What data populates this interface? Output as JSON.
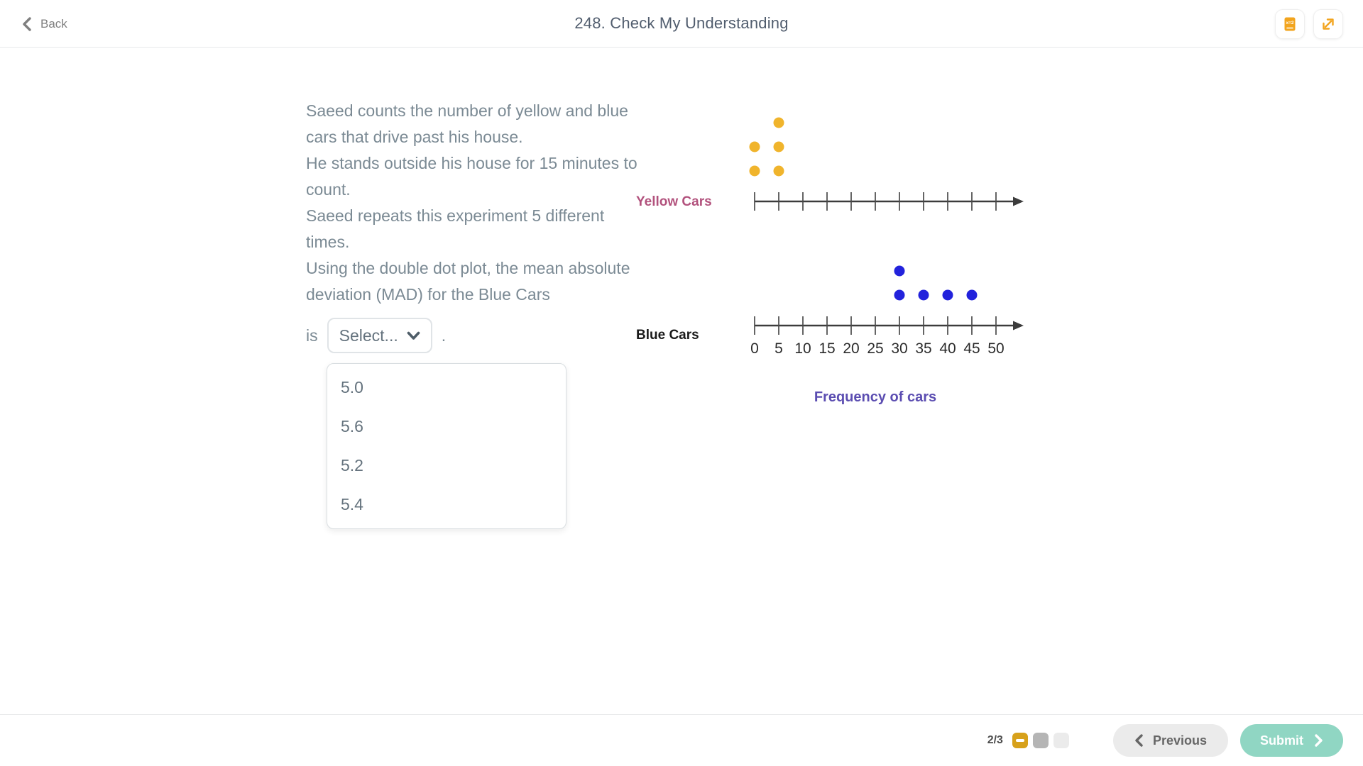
{
  "topbar": {
    "back_label": "Back",
    "title": "248. Check My Understanding",
    "formula_icon_text": "x=2"
  },
  "question": {
    "sentences": [
      "Saeed counts the number of yellow and blue cars that drive past his house.",
      "He stands outside his house for 15 minutes to count.",
      "Saeed repeats this experiment 5 different times.",
      "Using the double dot plot, the mean absolute deviation (MAD) for the Blue Cars"
    ],
    "inline_prefix": "is",
    "inline_suffix": ".",
    "dropdown": {
      "value": "Select...",
      "options": [
        "5.0",
        "5.6",
        "5.2",
        "5.4"
      ]
    }
  },
  "chart_data": {
    "type": "dot_plot",
    "xlabel": "Frequency of cars",
    "xlabel_color": "#5b4db1",
    "axis": {
      "min": 0,
      "max": 50,
      "step": 5,
      "tick_labels": [
        "0",
        "5",
        "10",
        "15",
        "20",
        "25",
        "30",
        "35",
        "40",
        "45",
        "50"
      ]
    },
    "series": [
      {
        "name": "Yellow Cars",
        "label_color": "#b2527d",
        "dot_color": "#f0b42c",
        "values": [
          0,
          0,
          5,
          5,
          5
        ],
        "show_tick_labels": false
      },
      {
        "name": "Blue Cars",
        "label_color": "#1a1a1a",
        "dot_color": "#2222dc",
        "values": [
          30,
          30,
          35,
          40,
          45
        ],
        "show_tick_labels": true
      }
    ]
  },
  "footer": {
    "progress_label": "2/3",
    "progress_squares": [
      {
        "state": "minus"
      },
      {
        "state": "current"
      },
      {
        "state": "upcoming"
      }
    ],
    "previous_label": "Previous",
    "submit_label": "Submit"
  },
  "colors": {
    "accent-orange": "#f2a41e",
    "amber": "#d7a11b",
    "teal": "#90d6c3",
    "question-text": "#7b8a94",
    "title-text": "#515d6e"
  }
}
